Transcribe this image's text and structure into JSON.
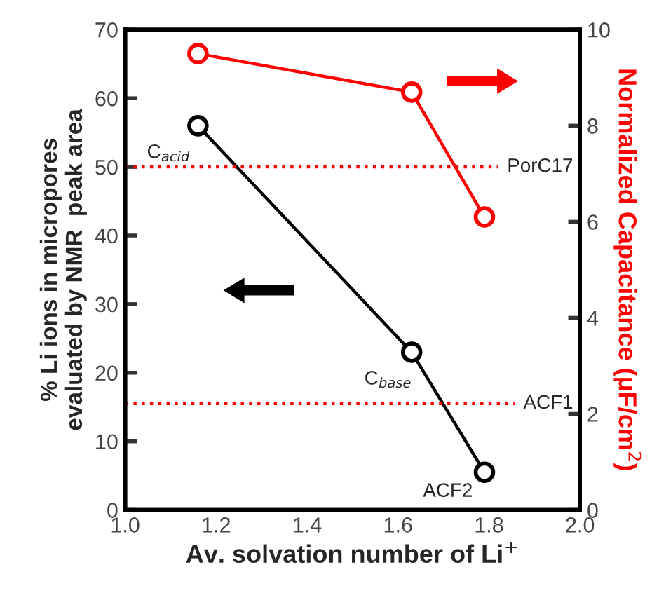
{
  "chart_data": {
    "type": "line",
    "xlabel": "Av. solvation number of Li$^{+}$",
    "ylabel": "% Li ions in micropores\nevaluated by NMR  peak area",
    "y2label": "Normalized Capacitance (μF/cm$^{2}$)",
    "x": [
      1.16,
      1.63,
      1.79
    ],
    "series": [
      {
        "color": "#000000",
        "values": [
          56,
          23,
          5.5
        ]
      },
      {
        "color": "#ff0000",
        "values": [
          9.5,
          8.7,
          6.1
        ],
        "axis": "y2"
      }
    ],
    "xlim": [
      1.0,
      2.0
    ],
    "xticks": [
      {
        "value": 1.0,
        "label": "1.0"
      },
      1.2,
      1.4,
      1.6,
      1.8,
      {
        "value": 2.0,
        "label": "2.0"
      }
    ],
    "ylim": [
      0,
      70
    ],
    "yticks": [
      0,
      10,
      20,
      30,
      40,
      50,
      60,
      70
    ],
    "y2lim": [
      0,
      10
    ],
    "y2ticks": [
      0,
      2,
      4,
      6,
      8,
      10
    ],
    "ref_lines": [
      {
        "axis": "y",
        "value": 50,
        "label": "PorC17",
        "color": "#ff0000",
        "line_style": "dotted"
      },
      {
        "axis": "y",
        "value": 15.5,
        "label": "ACF1",
        "color": "#ff0000",
        "line_style": "dotted"
      }
    ],
    "annotations": [
      {
        "text": "C$_{acid}$",
        "x": 1.16,
        "y": 56
      },
      {
        "text": "C$_{base}$",
        "x": 1.63,
        "y": 23
      },
      {
        "text": "ACF2",
        "x": 1.79,
        "y": 5.5
      }
    ],
    "marker": "circle",
    "line_style": "solid",
    "grid": false,
    "legend": false
  }
}
